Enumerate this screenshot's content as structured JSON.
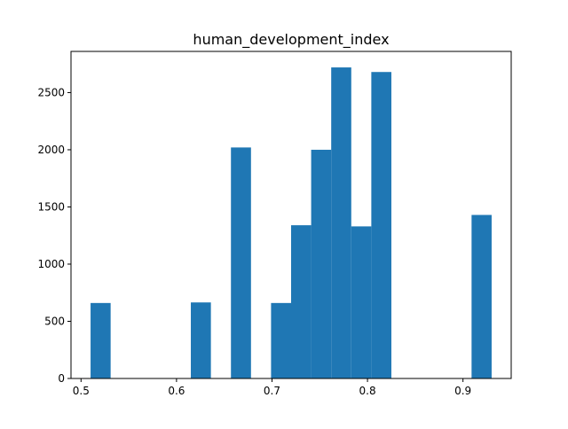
{
  "chart_data": {
    "type": "bar",
    "title": "human_development_index",
    "xlabel": "",
    "ylabel": "",
    "bar_color": "#1f77b4",
    "xlim": [
      0.4895,
      0.9505
    ],
    "ylim": [
      0,
      2860
    ],
    "xticks": [
      0.5,
      0.6,
      0.7,
      0.8,
      0.9
    ],
    "xtick_labels": [
      "0.5",
      "0.6",
      "0.7",
      "0.8",
      "0.9"
    ],
    "yticks": [
      0,
      500,
      1000,
      1500,
      2000,
      2500
    ],
    "ytick_labels": [
      "0",
      "500",
      "1000",
      "1500",
      "2000",
      "2500"
    ],
    "bin_edges": [
      0.51,
      0.531,
      0.552,
      0.573,
      0.594,
      0.615,
      0.636,
      0.657,
      0.678,
      0.699,
      0.72,
      0.741,
      0.762,
      0.783,
      0.804,
      0.825,
      0.846,
      0.867,
      0.888,
      0.909,
      0.93
    ],
    "counts": [
      660,
      0,
      0,
      0,
      0,
      665,
      0,
      2020,
      0,
      660,
      1340,
      2000,
      2720,
      1330,
      2680,
      0,
      0,
      0,
      0,
      1430
    ],
    "grid": false,
    "legend": "none"
  }
}
